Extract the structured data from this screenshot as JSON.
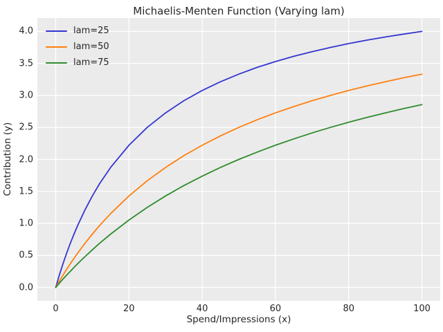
{
  "figure": {
    "title": "Michaelis-Menten Function (Varying lam)",
    "background": "#ffffff",
    "plot_background": "#ebebeb",
    "grid_color": "#ffffff",
    "text_color": "#262626"
  },
  "axes": {
    "xlabel": "Spend/Impressions (x)",
    "ylabel": "Contribution (y)"
  },
  "legend": {
    "entries": [
      {
        "label": "lam=25",
        "color": "#3434d1"
      },
      {
        "label": "lam=50",
        "color": "#ff7f0e"
      },
      {
        "label": "lam=75",
        "color": "#2e8b2e"
      }
    ]
  },
  "chart_data": {
    "type": "line",
    "title": "Michaelis-Menten Function (Varying lam)",
    "xlabel": "Spend/Impressions (x)",
    "ylabel": "Contribution (y)",
    "xlim": [
      -5,
      105
    ],
    "ylim": [
      -0.21,
      4.21
    ],
    "xticks": [
      0,
      20,
      40,
      60,
      80,
      100
    ],
    "yticks": [
      0,
      0.5,
      1,
      1.5,
      2,
      2.5,
      3,
      3.5,
      4
    ],
    "ytick_labels": [
      "0.0",
      "0.5",
      "1.0",
      "1.5",
      "2.0",
      "2.5",
      "3.0",
      "3.5",
      "4.0"
    ],
    "grid": true,
    "legend_position": "upper left",
    "x": [
      0,
      1,
      2,
      3,
      4,
      5,
      6,
      8,
      10,
      12,
      15,
      20,
      25,
      30,
      35,
      40,
      45,
      50,
      55,
      60,
      65,
      70,
      75,
      80,
      85,
      90,
      95,
      100
    ],
    "series": [
      {
        "name": "lam=25",
        "color": "#3434d1",
        "values": [
          0,
          0.192,
          0.37,
          0.536,
          0.69,
          0.833,
          0.968,
          1.212,
          1.429,
          1.622,
          1.875,
          2.222,
          2.5,
          2.727,
          2.917,
          3.077,
          3.214,
          3.333,
          3.438,
          3.529,
          3.611,
          3.684,
          3.75,
          3.81,
          3.864,
          3.913,
          3.958,
          4.0
        ]
      },
      {
        "name": "lam=50",
        "color": "#ff7f0e",
        "values": [
          0,
          0.098,
          0.192,
          0.283,
          0.37,
          0.455,
          0.536,
          0.69,
          0.833,
          0.968,
          1.154,
          1.429,
          1.667,
          1.875,
          2.059,
          2.222,
          2.368,
          2.5,
          2.619,
          2.727,
          2.826,
          2.917,
          3.0,
          3.077,
          3.148,
          3.214,
          3.276,
          3.333
        ]
      },
      {
        "name": "lam=75",
        "color": "#2e8b2e",
        "values": [
          0,
          0.066,
          0.13,
          0.192,
          0.253,
          0.313,
          0.37,
          0.482,
          0.588,
          0.69,
          0.833,
          1.053,
          1.25,
          1.429,
          1.591,
          1.739,
          1.875,
          2.0,
          2.115,
          2.222,
          2.321,
          2.414,
          2.5,
          2.581,
          2.656,
          2.727,
          2.794,
          2.857
        ]
      }
    ]
  }
}
